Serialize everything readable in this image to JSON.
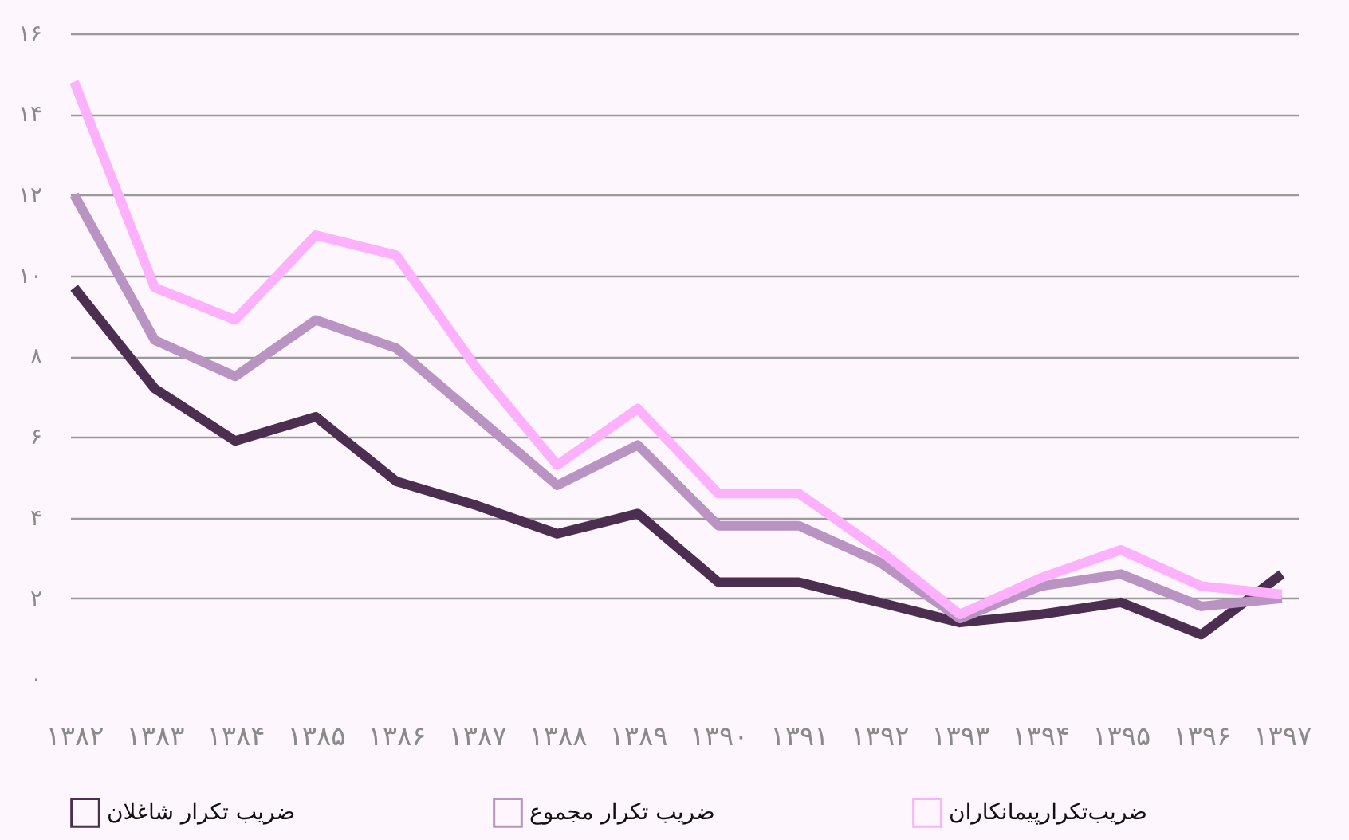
{
  "chart_data": {
    "type": "line",
    "categories": [
      "۱۳۸۲",
      "۱۳۸۳",
      "۱۳۸۴",
      "۱۳۸۵",
      "۱۳۸۶",
      "۱۳۸۷",
      "۱۳۸۸",
      "۱۳۸۹",
      "۱۳۹۰",
      "۱۳۹۱",
      "۱۳۹۲",
      "۱۳۹۳",
      "۱۳۹۴",
      "۱۳۹۵",
      "۱۳۹۶",
      "۱۳۹۷"
    ],
    "series": [
      {
        "name": "ضریب تکرار شاغلان",
        "color": "#4b2e50",
        "values": [
          9.7,
          7.2,
          5.9,
          6.5,
          4.9,
          4.3,
          3.6,
          4.1,
          2.4,
          2.4,
          1.9,
          1.4,
          1.6,
          1.9,
          1.1,
          2.6
        ]
      },
      {
        "name": "ضریب تکرار مجموع",
        "color": "#b994c3",
        "values": [
          12.0,
          8.4,
          7.5,
          8.9,
          8.2,
          6.5,
          4.8,
          5.8,
          3.8,
          3.8,
          2.9,
          1.5,
          2.3,
          2.6,
          1.8,
          2.0
        ]
      },
      {
        "name": "ضریب‌تکرارپیمانکاران",
        "color": "#fdb0fb",
        "values": [
          14.8,
          9.7,
          8.9,
          11.0,
          10.5,
          7.7,
          5.3,
          6.7,
          4.6,
          4.6,
          3.2,
          1.6,
          2.5,
          3.2,
          2.3,
          2.1
        ]
      }
    ],
    "ylim": [
      0,
      16
    ],
    "yticks": [
      {
        "value": 0,
        "label": "۰"
      },
      {
        "value": 2,
        "label": "۲"
      },
      {
        "value": 4,
        "label": "۴"
      },
      {
        "value": 6,
        "label": "۶"
      },
      {
        "value": 8,
        "label": "۸"
      },
      {
        "value": 10,
        "label": "۱۰"
      },
      {
        "value": 12,
        "label": "۱۲"
      },
      {
        "value": 14,
        "label": "۱۴"
      },
      {
        "value": 16,
        "label": "۱۶"
      }
    ],
    "grid": "y",
    "legend": "bottom",
    "marker": "none",
    "line_style": "solid"
  }
}
